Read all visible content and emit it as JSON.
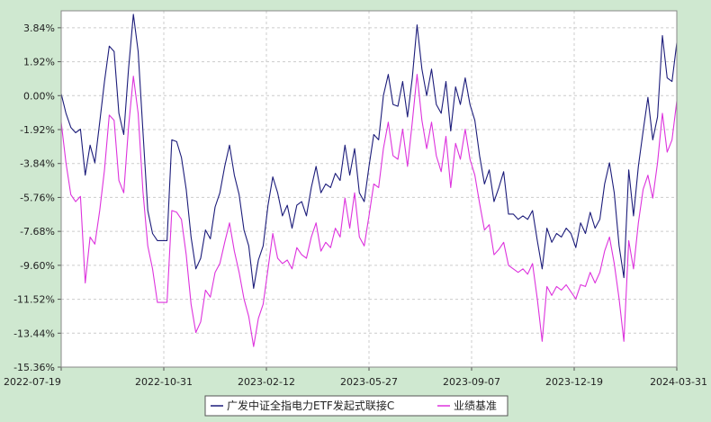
{
  "chart_data": {
    "type": "line",
    "title": "",
    "xlabel": "",
    "ylabel": "",
    "ylim": [
      -15.36,
      4.8
    ],
    "y_ticks": [
      "3.84%",
      "1.92%",
      "0.00%",
      "-1.92%",
      "-3.84%",
      "-5.76%",
      "-7.68%",
      "-9.60%",
      "-11.52%",
      "-13.44%",
      "-15.36%"
    ],
    "y_tick_values": [
      3.84,
      1.92,
      0.0,
      -1.92,
      -3.84,
      -5.76,
      -7.68,
      -9.6,
      -11.52,
      -13.44,
      -15.36
    ],
    "x_ticks": [
      "2022-07-19",
      "2022-10-31",
      "2023-02-12",
      "2023-05-27",
      "2023-09-07",
      "2023-12-19",
      "2024-03-31"
    ],
    "grid": true,
    "legend_position": "bottom-center",
    "colors": {
      "fund": "#1c1c7a",
      "benchmark": "#dd33dd",
      "plot_bg": "#ffffff",
      "page_bg": "#cfe8d0",
      "grid": "#cccccc"
    },
    "x_index_range": [
      0,
      128
    ],
    "series": [
      {
        "name": "广发中证全指电力ETF发起式联接C",
        "key": "fund",
        "points": [
          [
            0,
            0.1
          ],
          [
            1,
            -1.0
          ],
          [
            2,
            -1.8
          ],
          [
            3,
            -2.1
          ],
          [
            4,
            -1.9
          ],
          [
            5,
            -4.5
          ],
          [
            6,
            -2.8
          ],
          [
            7,
            -3.8
          ],
          [
            8,
            -1.5
          ],
          [
            9,
            0.8
          ],
          [
            10,
            2.8
          ],
          [
            11,
            2.5
          ],
          [
            12,
            -1.0
          ],
          [
            13,
            -2.2
          ],
          [
            14,
            1.5
          ],
          [
            15,
            4.6
          ],
          [
            16,
            2.5
          ],
          [
            17,
            -2.0
          ],
          [
            18,
            -6.5
          ],
          [
            19,
            -7.8
          ],
          [
            20,
            -8.2
          ],
          [
            21,
            -8.2
          ],
          [
            22,
            -8.2
          ],
          [
            23,
            -2.5
          ],
          [
            24,
            -2.6
          ],
          [
            25,
            -3.5
          ],
          [
            26,
            -5.3
          ],
          [
            27,
            -8.0
          ],
          [
            28,
            -9.8
          ],
          [
            29,
            -9.2
          ],
          [
            30,
            -7.6
          ],
          [
            31,
            -8.1
          ],
          [
            32,
            -6.3
          ],
          [
            33,
            -5.5
          ],
          [
            34,
            -4.0
          ],
          [
            35,
            -2.8
          ],
          [
            36,
            -4.5
          ],
          [
            37,
            -5.6
          ],
          [
            38,
            -7.6
          ],
          [
            39,
            -8.5
          ],
          [
            40,
            -10.9
          ],
          [
            41,
            -9.3
          ],
          [
            42,
            -8.5
          ],
          [
            43,
            -6.2
          ],
          [
            44,
            -4.6
          ],
          [
            45,
            -5.5
          ],
          [
            46,
            -6.8
          ],
          [
            47,
            -6.2
          ],
          [
            48,
            -7.5
          ],
          [
            49,
            -6.2
          ],
          [
            50,
            -6.0
          ],
          [
            51,
            -6.8
          ],
          [
            52,
            -5.2
          ],
          [
            53,
            -4.0
          ],
          [
            54,
            -5.5
          ],
          [
            55,
            -5.0
          ],
          [
            56,
            -5.2
          ],
          [
            57,
            -4.4
          ],
          [
            58,
            -4.8
          ],
          [
            59,
            -2.8
          ],
          [
            60,
            -4.5
          ],
          [
            61,
            -3.0
          ],
          [
            62,
            -5.5
          ],
          [
            63,
            -6.0
          ],
          [
            64,
            -4.0
          ],
          [
            65,
            -2.2
          ],
          [
            66,
            -2.5
          ],
          [
            67,
            0.0
          ],
          [
            68,
            1.2
          ],
          [
            69,
            -0.5
          ],
          [
            70,
            -0.6
          ],
          [
            71,
            0.8
          ],
          [
            72,
            -1.2
          ],
          [
            73,
            1.0
          ],
          [
            74,
            4.0
          ],
          [
            75,
            1.5
          ],
          [
            76,
            0.0
          ],
          [
            77,
            1.5
          ],
          [
            78,
            -0.5
          ],
          [
            79,
            -1.0
          ],
          [
            80,
            0.8
          ],
          [
            81,
            -2.0
          ],
          [
            82,
            0.5
          ],
          [
            83,
            -0.5
          ],
          [
            84,
            1.0
          ],
          [
            85,
            -0.5
          ],
          [
            86,
            -1.4
          ],
          [
            87,
            -3.4
          ],
          [
            88,
            -5.0
          ],
          [
            89,
            -4.2
          ],
          [
            90,
            -6.0
          ],
          [
            91,
            -5.2
          ],
          [
            92,
            -4.3
          ],
          [
            93,
            -6.7
          ],
          [
            94,
            -6.7
          ],
          [
            95,
            -7.0
          ],
          [
            96,
            -6.8
          ],
          [
            97,
            -7.0
          ],
          [
            98,
            -6.5
          ],
          [
            99,
            -8.2
          ],
          [
            100,
            -9.8
          ],
          [
            101,
            -7.5
          ],
          [
            102,
            -8.3
          ],
          [
            103,
            -7.8
          ],
          [
            104,
            -8.0
          ],
          [
            105,
            -7.5
          ],
          [
            106,
            -7.8
          ],
          [
            107,
            -8.6
          ],
          [
            108,
            -7.2
          ],
          [
            109,
            -7.8
          ],
          [
            110,
            -6.6
          ],
          [
            111,
            -7.5
          ],
          [
            112,
            -7.0
          ],
          [
            113,
            -5.0
          ],
          [
            114,
            -3.8
          ],
          [
            115,
            -5.5
          ],
          [
            116,
            -8.5
          ],
          [
            117,
            -10.3
          ],
          [
            118,
            -4.2
          ],
          [
            119,
            -6.8
          ],
          [
            120,
            -4.0
          ],
          [
            121,
            -2.0
          ],
          [
            122,
            -0.1
          ],
          [
            123,
            -2.5
          ],
          [
            124,
            -1.2
          ],
          [
            125,
            3.4
          ],
          [
            126,
            1.0
          ],
          [
            127,
            0.8
          ],
          [
            128,
            3.0
          ]
        ]
      },
      {
        "name": "业绩基准",
        "key": "benchmark",
        "points": [
          [
            0,
            -1.5
          ],
          [
            1,
            -3.8
          ],
          [
            2,
            -5.6
          ],
          [
            3,
            -6.0
          ],
          [
            4,
            -5.7
          ],
          [
            5,
            -10.6
          ],
          [
            6,
            -8.0
          ],
          [
            7,
            -8.4
          ],
          [
            8,
            -6.5
          ],
          [
            9,
            -4.2
          ],
          [
            10,
            -1.1
          ],
          [
            11,
            -1.4
          ],
          [
            12,
            -4.8
          ],
          [
            13,
            -5.5
          ],
          [
            14,
            -1.8
          ],
          [
            15,
            1.1
          ],
          [
            16,
            -1.0
          ],
          [
            17,
            -5.4
          ],
          [
            18,
            -8.5
          ],
          [
            19,
            -9.8
          ],
          [
            20,
            -11.7
          ],
          [
            21,
            -11.7
          ],
          [
            22,
            -11.7
          ],
          [
            23,
            -6.5
          ],
          [
            24,
            -6.6
          ],
          [
            25,
            -7.0
          ],
          [
            26,
            -9.0
          ],
          [
            27,
            -11.8
          ],
          [
            28,
            -13.4
          ],
          [
            29,
            -12.8
          ],
          [
            30,
            -11.0
          ],
          [
            31,
            -11.4
          ],
          [
            32,
            -10.0
          ],
          [
            33,
            -9.5
          ],
          [
            34,
            -8.3
          ],
          [
            35,
            -7.2
          ],
          [
            36,
            -8.8
          ],
          [
            37,
            -10.0
          ],
          [
            38,
            -11.5
          ],
          [
            39,
            -12.5
          ],
          [
            40,
            -14.2
          ],
          [
            41,
            -12.6
          ],
          [
            42,
            -11.8
          ],
          [
            43,
            -9.8
          ],
          [
            44,
            -7.8
          ],
          [
            45,
            -9.2
          ],
          [
            46,
            -9.5
          ],
          [
            47,
            -9.3
          ],
          [
            48,
            -9.8
          ],
          [
            49,
            -8.6
          ],
          [
            50,
            -9.0
          ],
          [
            51,
            -9.2
          ],
          [
            52,
            -8.0
          ],
          [
            53,
            -7.2
          ],
          [
            54,
            -8.8
          ],
          [
            55,
            -8.3
          ],
          [
            56,
            -8.6
          ],
          [
            57,
            -7.5
          ],
          [
            58,
            -8.0
          ],
          [
            59,
            -5.8
          ],
          [
            60,
            -7.5
          ],
          [
            61,
            -5.5
          ],
          [
            62,
            -8.0
          ],
          [
            63,
            -8.5
          ],
          [
            64,
            -6.8
          ],
          [
            65,
            -5.0
          ],
          [
            66,
            -5.2
          ],
          [
            67,
            -3.0
          ],
          [
            68,
            -1.5
          ],
          [
            69,
            -3.4
          ],
          [
            70,
            -3.6
          ],
          [
            71,
            -1.9
          ],
          [
            72,
            -4.0
          ],
          [
            73,
            -1.5
          ],
          [
            74,
            1.2
          ],
          [
            75,
            -1.4
          ],
          [
            76,
            -3.0
          ],
          [
            77,
            -1.5
          ],
          [
            78,
            -3.4
          ],
          [
            79,
            -4.3
          ],
          [
            80,
            -2.3
          ],
          [
            81,
            -5.2
          ],
          [
            82,
            -2.7
          ],
          [
            83,
            -3.6
          ],
          [
            84,
            -1.9
          ],
          [
            85,
            -3.6
          ],
          [
            86,
            -4.5
          ],
          [
            87,
            -6.1
          ],
          [
            88,
            -7.6
          ],
          [
            89,
            -7.3
          ],
          [
            90,
            -9.0
          ],
          [
            91,
            -8.7
          ],
          [
            92,
            -8.3
          ],
          [
            93,
            -9.6
          ],
          [
            94,
            -9.8
          ],
          [
            95,
            -10.0
          ],
          [
            96,
            -9.8
          ],
          [
            97,
            -10.1
          ],
          [
            98,
            -9.5
          ],
          [
            99,
            -11.5
          ],
          [
            100,
            -13.9
          ],
          [
            101,
            -10.8
          ],
          [
            102,
            -11.3
          ],
          [
            103,
            -10.8
          ],
          [
            104,
            -11.0
          ],
          [
            105,
            -10.7
          ],
          [
            106,
            -11.1
          ],
          [
            107,
            -11.5
          ],
          [
            108,
            -10.7
          ],
          [
            109,
            -10.8
          ],
          [
            110,
            -10.0
          ],
          [
            111,
            -10.6
          ],
          [
            112,
            -10.0
          ],
          [
            113,
            -8.8
          ],
          [
            114,
            -8.0
          ],
          [
            115,
            -9.5
          ],
          [
            116,
            -11.5
          ],
          [
            117,
            -13.9
          ],
          [
            118,
            -8.2
          ],
          [
            119,
            -9.8
          ],
          [
            120,
            -7.2
          ],
          [
            121,
            -5.3
          ],
          [
            122,
            -4.5
          ],
          [
            123,
            -5.8
          ],
          [
            124,
            -3.8
          ],
          [
            125,
            -1.0
          ],
          [
            126,
            -3.2
          ],
          [
            127,
            -2.5
          ],
          [
            128,
            -0.3
          ]
        ]
      }
    ]
  }
}
